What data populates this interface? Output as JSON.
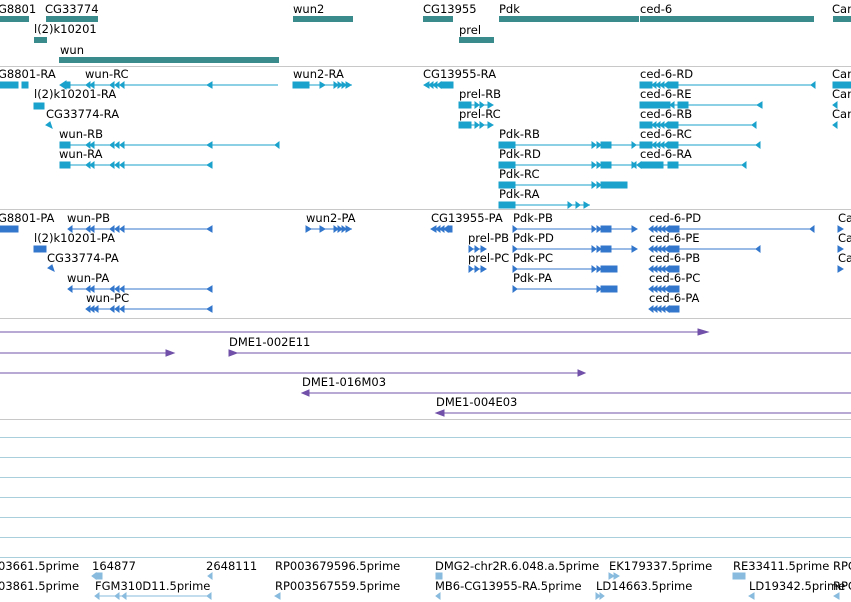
{
  "colors": {
    "gene": "#3a8c8c",
    "mrna": "#1aa2cc",
    "protein": "#3377cc",
    "clone": "#7050a8",
    "est": "#88bbdd",
    "blank_line": "#a9cfdc",
    "separator": "#c8c8c8"
  },
  "genes": [
    {
      "label": "G8801"
    },
    {
      "label": "CG33774"
    },
    {
      "label": "l(2)k10201"
    },
    {
      "label": "wun"
    },
    {
      "label": "wun2"
    },
    {
      "label": "CG13955"
    },
    {
      "label": "prel"
    },
    {
      "label": "Pdk"
    },
    {
      "label": "ced-6"
    },
    {
      "label": "Car"
    }
  ],
  "transcripts": [
    {
      "label": "G8801-RA"
    },
    {
      "label": "wun-RC"
    },
    {
      "label": "l(2)k10201-RA"
    },
    {
      "label": "CG33774-RA"
    },
    {
      "label": "wun-RB"
    },
    {
      "label": "wun-RA"
    },
    {
      "label": "wun2-RA"
    },
    {
      "label": "CG13955-RA"
    },
    {
      "label": "prel-RB"
    },
    {
      "label": "prel-RC"
    },
    {
      "label": "Pdk-RB"
    },
    {
      "label": "Pdk-RD"
    },
    {
      "label": "Pdk-RC"
    },
    {
      "label": "Pdk-RA"
    },
    {
      "label": "ced-6-RD"
    },
    {
      "label": "ced-6-RE"
    },
    {
      "label": "ced-6-RB"
    },
    {
      "label": "ced-6-RC"
    },
    {
      "label": "ced-6-RA"
    },
    {
      "label": "Car"
    },
    {
      "label": "Car"
    },
    {
      "label": "Car"
    }
  ],
  "proteins": [
    {
      "label": "G8801-PA"
    },
    {
      "label": "wun-PB"
    },
    {
      "label": "l(2)k10201-PA"
    },
    {
      "label": "CG33774-PA"
    },
    {
      "label": "wun-PA"
    },
    {
      "label": "wun-PC"
    },
    {
      "label": "wun2-PA"
    },
    {
      "label": "CG13955-PA"
    },
    {
      "label": "prel-PB"
    },
    {
      "label": "prel-PC"
    },
    {
      "label": "Pdk-PB"
    },
    {
      "label": "Pdk-PD"
    },
    {
      "label": "Pdk-PC"
    },
    {
      "label": "Pdk-PA"
    },
    {
      "label": "ced-6-PD"
    },
    {
      "label": "ced-6-PE"
    },
    {
      "label": "ced-6-PB"
    },
    {
      "label": "ced-6-PC"
    },
    {
      "label": "ced-6-PA"
    },
    {
      "label": "Ca"
    },
    {
      "label": "Ca"
    },
    {
      "label": "Ca"
    }
  ],
  "clones": [
    {
      "label": ""
    },
    {
      "label": "DME1-002E11"
    },
    {
      "label": ""
    },
    {
      "label": "DME1-016M03"
    },
    {
      "label": "DME1-004E03"
    }
  ],
  "ests": [
    {
      "label": "03661.5prime"
    },
    {
      "label": "164877"
    },
    {
      "label": "2648111"
    },
    {
      "label": "RP003679596.5prime"
    },
    {
      "label": "DMG2-chr2R.6.048.a.5prime"
    },
    {
      "label": "EK179337.5prime"
    },
    {
      "label": "RE33411.5prime"
    },
    {
      "label": "RPC"
    },
    {
      "label": "03861.5prime"
    },
    {
      "label": "FGM310D11.5prime"
    },
    {
      "label": "RP003567559.5prime"
    },
    {
      "label": "MB6-CG13955-RA.5prime"
    },
    {
      "label": "LD14663.5prime"
    },
    {
      "label": "LD19342.5prime"
    },
    {
      "label": "RPC"
    }
  ]
}
